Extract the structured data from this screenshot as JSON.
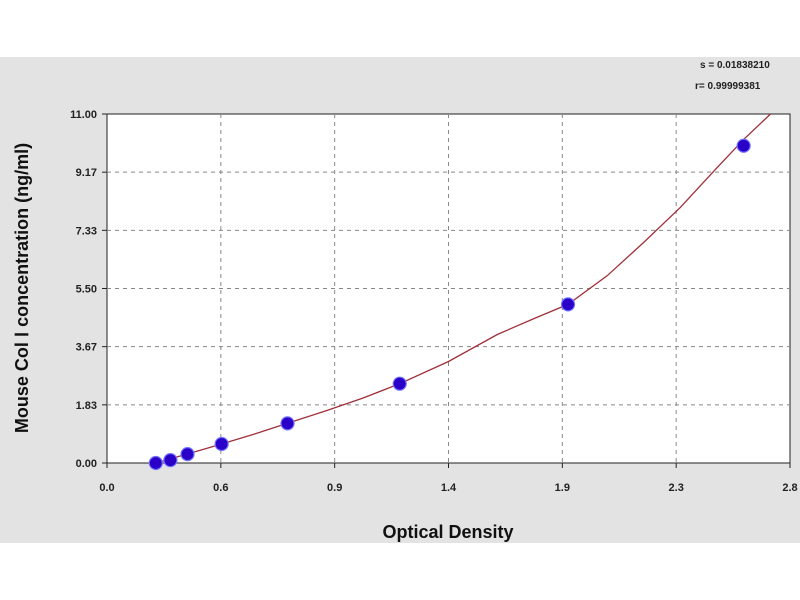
{
  "chart_data": {
    "type": "scatter",
    "xlabel": "Optical Density",
    "ylabel": "Mouse Col Ⅰ concentration (ng/ml)",
    "stats": [
      "s = 0.01838210",
      "r= 0.99999381"
    ],
    "x_ticks": [
      "0.0",
      "0.6",
      "0.9",
      "1.4",
      "1.9",
      "2.3",
      "2.8"
    ],
    "y_ticks": [
      "0.00",
      "1.83",
      "3.67",
      "5.50",
      "7.33",
      "9.17",
      "11.00"
    ],
    "xlim": [
      0.0,
      2.8
    ],
    "ylim": [
      0.0,
      11.0
    ],
    "grid": true,
    "point_color": "#2a00c8",
    "curve_color": "#a0303a",
    "x": [
      0.2,
      0.26,
      0.33,
      0.47,
      0.74,
      1.2,
      1.89,
      2.61
    ],
    "y": [
      0.0,
      0.09,
      0.28,
      0.6,
      1.25,
      2.5,
      5.0,
      10.0
    ],
    "fit_curve": {
      "x": [
        0.2,
        0.3,
        0.4,
        0.5,
        0.6,
        0.74,
        0.9,
        1.05,
        1.2,
        1.4,
        1.6,
        1.75,
        1.89,
        2.05,
        2.2,
        2.35,
        2.5,
        2.61,
        2.72
      ],
      "y": [
        0.0,
        0.22,
        0.44,
        0.67,
        0.9,
        1.25,
        1.65,
        2.05,
        2.5,
        3.2,
        4.05,
        4.55,
        5.0,
        5.9,
        6.95,
        8.05,
        9.3,
        10.2,
        11.0
      ]
    }
  }
}
